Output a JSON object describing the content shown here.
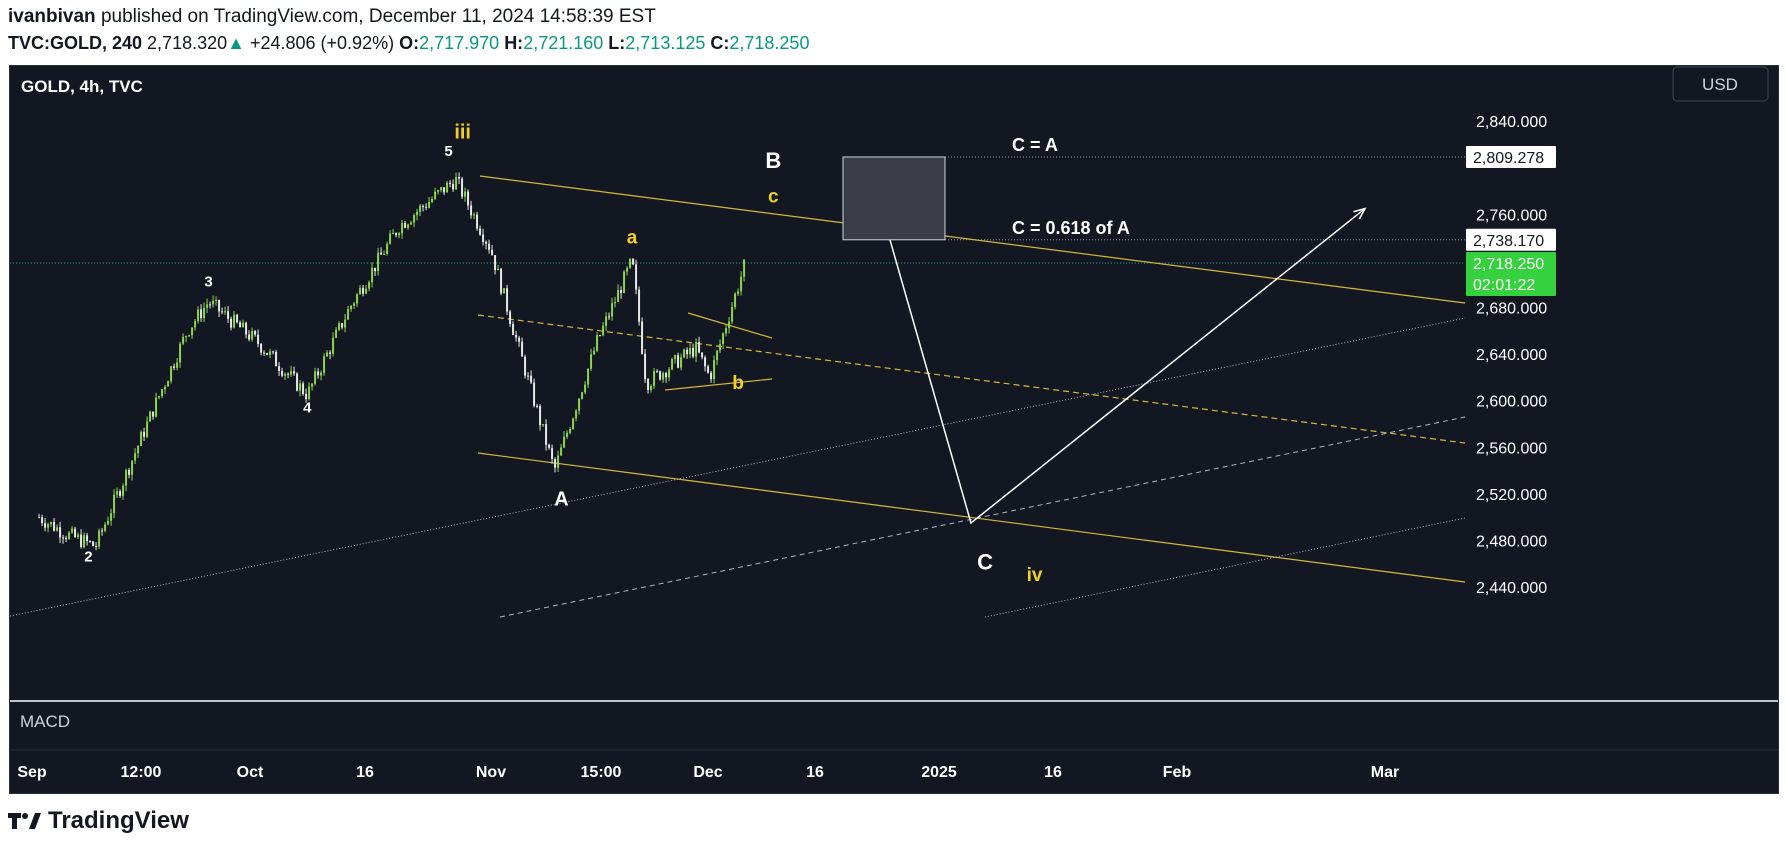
{
  "header": {
    "author": "ivanbivan",
    "published_text": "published on TradingView.com, December 11, 2024 14:58:39 EST",
    "symbol": "TVC:GOLD, 240",
    "last": "2,718.320",
    "up_arrow": "▲",
    "change": "+24.806 (+0.92%)",
    "o_label": "O:",
    "o_value": "2,717.970",
    "h_label": "H:",
    "h_value": "2,721.160",
    "l_label": "L:",
    "l_value": "2,713.125",
    "c_label": "C:",
    "c_value": "2,718.250"
  },
  "chart_data": {
    "type": "candlestick",
    "title": "GOLD, 4h, TVC",
    "currency": "USD",
    "indicator": "MACD",
    "y_range": [
      2420,
      2870
    ],
    "y_ticks": [
      2840,
      2760,
      2680,
      2640,
      2600,
      2560,
      2520,
      2480,
      2440
    ],
    "y_tick_labels": [
      "2,840.000",
      "2,760.000",
      "2,680.000",
      "2,640.000",
      "2,600.000",
      "2,560.000",
      "2,520.000",
      "2,480.000",
      "2,440.000"
    ],
    "x_tick_labels": [
      "Sep",
      "12:00",
      "Oct",
      "16",
      "Nov",
      "15:00",
      "Dec",
      "16",
      "2025",
      "16",
      "Feb",
      "Mar"
    ],
    "price_markers": [
      {
        "value": 2809.278,
        "label": "2,809.278"
      },
      {
        "value": 2738.17,
        "label": "2,738.170"
      }
    ],
    "current_price": {
      "value": 2718.25,
      "label": "2,718.250",
      "countdown": "02:01:22"
    },
    "price_path_pivots": [
      {
        "date": "2024-09-02",
        "price": 2500
      },
      {
        "date": "2024-09-06",
        "price": 2485
      },
      {
        "date": "2024-09-10",
        "price": 2475
      },
      {
        "date": "2024-09-18",
        "price": 2590
      },
      {
        "date": "2024-09-23",
        "price": 2660
      },
      {
        "date": "2024-09-26",
        "price": 2685
      },
      {
        "date": "2024-10-03",
        "price": 2650
      },
      {
        "date": "2024-10-10",
        "price": 2605
      },
      {
        "date": "2024-10-16",
        "price": 2680
      },
      {
        "date": "2024-10-23",
        "price": 2750
      },
      {
        "date": "2024-10-31",
        "price": 2790
      },
      {
        "date": "2024-11-05",
        "price": 2730
      },
      {
        "date": "2024-11-08",
        "price": 2665
      },
      {
        "date": "2024-11-14",
        "price": 2540
      },
      {
        "date": "2024-11-20",
        "price": 2650
      },
      {
        "date": "2024-11-25",
        "price": 2720
      },
      {
        "date": "2024-11-27",
        "price": 2615
      },
      {
        "date": "2024-12-04",
        "price": 2645
      },
      {
        "date": "2024-12-06",
        "price": 2620
      },
      {
        "date": "2024-12-11",
        "price": 2718
      }
    ],
    "wave_labels": [
      {
        "text": "2",
        "date": "2024-09-09",
        "price": 2462,
        "color": "#ffffff",
        "size": 15
      },
      {
        "text": "3",
        "date": "2024-09-26",
        "price": 2698,
        "color": "#ffffff",
        "size": 15
      },
      {
        "text": "4",
        "date": "2024-10-10",
        "price": 2590,
        "color": "#ffffff",
        "size": 15
      },
      {
        "text": "5",
        "date": "2024-10-30",
        "price": 2810,
        "color": "#ffffff",
        "size": 15
      },
      {
        "text": "iii",
        "date": "2024-11-01",
        "price": 2825,
        "color": "#f0d024",
        "size": 20
      },
      {
        "text": "A",
        "date": "2024-11-15",
        "price": 2510,
        "color": "#ffffff",
        "size": 20
      },
      {
        "text": "a",
        "date": "2024-11-25",
        "price": 2735,
        "color": "#f0d024",
        "size": 19
      },
      {
        "text": "b",
        "date": "2024-12-10",
        "price": 2610,
        "color": "#f0d024",
        "size": 19
      },
      {
        "text": "B",
        "date": "2024-12-15",
        "price": 2800,
        "color": "#ffffff",
        "size": 22
      },
      {
        "text": "c",
        "date": "2024-12-15",
        "price": 2770,
        "color": "#f0d024",
        "size": 19
      },
      {
        "text": "C",
        "date": "2025-01-14",
        "price": 2455,
        "color": "#ffffff",
        "size": 22
      },
      {
        "text": "iv",
        "date": "2025-01-21",
        "price": 2445,
        "color": "#f0d024",
        "size": 19
      }
    ],
    "target_labels": [
      {
        "text": "C = A",
        "price": 2809.278
      },
      {
        "text": "C = 0.618 of A",
        "price": 2738.17
      }
    ]
  },
  "branding": {
    "logo_text": "TradingView"
  }
}
